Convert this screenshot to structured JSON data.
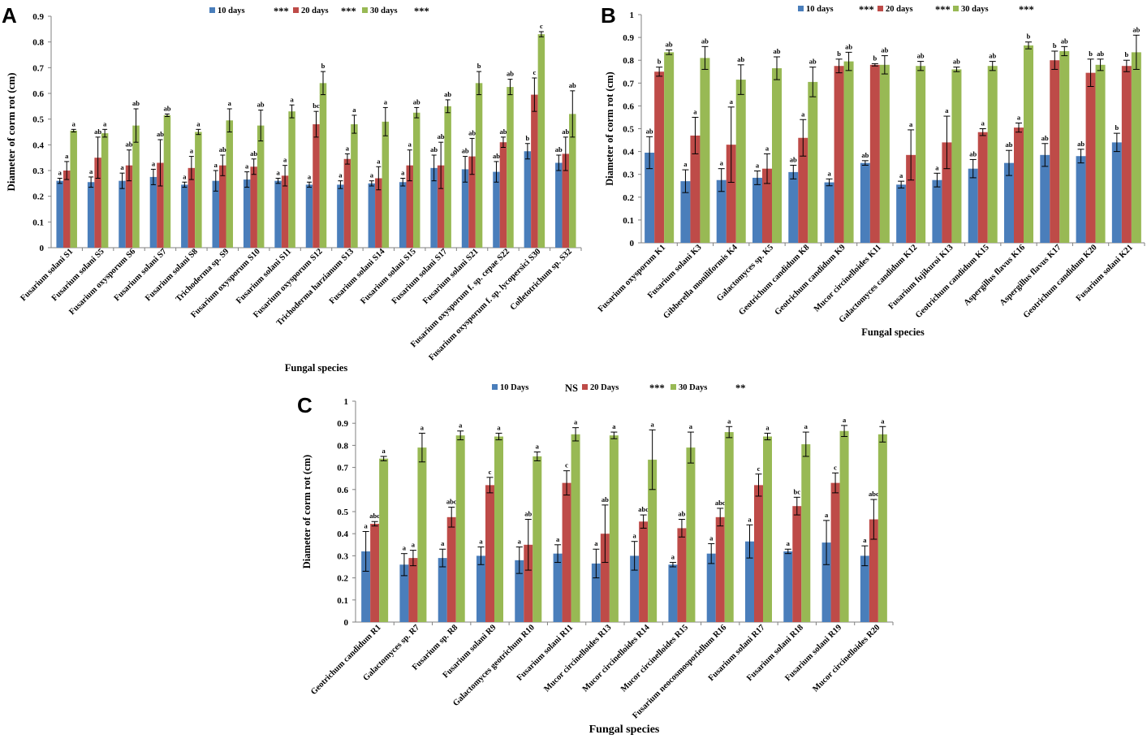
{
  "chart_data": [
    {
      "panel": "A",
      "type": "bar",
      "ylabel": "Diameter of corm rot (cm)",
      "xlabel": "Fungal species",
      "ylim": [
        0,
        0.9
      ],
      "yticks": [
        "0",
        "0.1",
        "0.2",
        "0.3",
        "0.4",
        "0.5",
        "0.6",
        "0.7",
        "0.8",
        "0.9"
      ],
      "legend_position": "top",
      "categories": [
        "Fusarium solani S1",
        "Fusarium solani S5",
        "Fusarium oxysporum S6",
        "Fusarium solani S7",
        "Fusarium solani S8",
        "Trichoderma sp. S9",
        "Fusarium oxysporum S10",
        "Fusarium solani S11",
        "Fusarium oxysporum S12",
        "Trichoderma harzianum S13",
        "Fusarium solani S14",
        "Fusarium solani S15",
        "Fusarium solani S17",
        "Fusarium solani S21",
        "Fusarium oxysporum f. sp. cepae S22",
        "Fusarium oxysporum f. sp. lycopersici S30",
        "Colletotrichum sp. S32"
      ],
      "series": [
        {
          "name": "10 days",
          "sig": "***",
          "color": "#4a7ebb",
          "values": [
            0.26,
            0.255,
            0.26,
            0.275,
            0.245,
            0.26,
            0.265,
            0.26,
            0.245,
            0.245,
            0.25,
            0.255,
            0.31,
            0.305,
            0.295,
            0.375,
            0.33
          ],
          "errors": [
            0.01,
            0.02,
            0.03,
            0.03,
            0.01,
            0.04,
            0.03,
            0.01,
            0.01,
            0.015,
            0.01,
            0.015,
            0.05,
            0.05,
            0.04,
            0.03,
            0.03
          ],
          "labels": [
            "a",
            "a",
            "a",
            "a",
            "a",
            "a",
            "a",
            "a",
            "a",
            "a",
            "a",
            "a",
            "ab",
            "ab",
            "ab",
            "b",
            "ab"
          ]
        },
        {
          "name": "20 days",
          "sig": "***",
          "color": "#be4b48",
          "values": [
            0.3,
            0.35,
            0.32,
            0.33,
            0.31,
            0.32,
            0.315,
            0.28,
            0.48,
            0.345,
            0.27,
            0.32,
            0.32,
            0.355,
            0.41,
            0.595,
            0.365
          ],
          "errors": [
            0.035,
            0.08,
            0.06,
            0.09,
            0.045,
            0.04,
            0.03,
            0.04,
            0.05,
            0.02,
            0.045,
            0.06,
            0.09,
            0.07,
            0.02,
            0.065,
            0.065
          ],
          "labels": [
            "a",
            "ab",
            "ab",
            "ab",
            "a",
            "ab",
            "ab",
            "a",
            "bc",
            "a",
            "a",
            "a",
            "ab",
            "ab",
            "ab",
            "c",
            "ab"
          ]
        },
        {
          "name": "30 days",
          "sig": "***",
          "color": "#98b954",
          "values": [
            0.455,
            0.445,
            0.475,
            0.515,
            0.45,
            0.495,
            0.475,
            0.53,
            0.64,
            0.48,
            0.49,
            0.525,
            0.55,
            0.64,
            0.625,
            0.83,
            0.52
          ],
          "errors": [
            0.005,
            0.015,
            0.065,
            0.005,
            0.01,
            0.045,
            0.06,
            0.025,
            0.045,
            0.035,
            0.055,
            0.02,
            0.025,
            0.045,
            0.03,
            0.01,
            0.09
          ],
          "labels": [
            "a",
            "a",
            "ab",
            "ab",
            "a",
            "a",
            "ab",
            "a",
            "b",
            "a",
            "a",
            "ab",
            "ab",
            "b",
            "ab",
            "c",
            "ab"
          ]
        }
      ]
    },
    {
      "panel": "B",
      "type": "bar",
      "ylabel": "Diameter of corm rot (cm)",
      "xlabel": "Fungal species",
      "ylim": [
        0,
        1
      ],
      "yticks": [
        "0",
        "0.1",
        "0.2",
        "0.3",
        "0.4",
        "0.5",
        "0.6",
        "0.7",
        "0.8",
        "0.9",
        "1"
      ],
      "legend_position": "top",
      "categories": [
        "Fusarium oxysporum K1",
        "Fusarium solani K3",
        "Gibberella moniliformis K4",
        "Galactomyces sp. K5",
        "Geotrichum candidum K8",
        "Geotrichum candidum K9",
        "Mucor circinelloides K11",
        "Galactomyces candidum K12",
        "Fusarium fujikuroi K13",
        "Geotrichum candidum K15",
        "Aspergillus flavus K16",
        "Aspergillus flavus K17",
        "Geotrichum candidum K20",
        "Fusarium solani K21"
      ],
      "series": [
        {
          "name": "10  days",
          "sig": "***",
          "color": "#4a7ebb",
          "values": [
            0.395,
            0.27,
            0.275,
            0.285,
            0.31,
            0.265,
            0.35,
            0.255,
            0.275,
            0.325,
            0.35,
            0.385,
            0.38,
            0.44
          ],
          "errors": [
            0.07,
            0.05,
            0.05,
            0.03,
            0.03,
            0.015,
            0.01,
            0.015,
            0.03,
            0.04,
            0.055,
            0.05,
            0.03,
            0.04
          ],
          "labels": [
            "ab",
            "a",
            "a",
            "a",
            "ab",
            "a",
            "ab",
            "a",
            "a",
            "ab",
            "ab",
            "ab",
            "ab",
            "b"
          ]
        },
        {
          "name": "20 days",
          "sig": "***",
          "color": "#be4b48",
          "values": [
            0.75,
            0.47,
            0.43,
            0.325,
            0.46,
            0.775,
            0.78,
            0.385,
            0.44,
            0.485,
            0.505,
            0.8,
            0.745,
            0.775
          ],
          "errors": [
            0.02,
            0.08,
            0.165,
            0.065,
            0.08,
            0.03,
            0.005,
            0.11,
            0.115,
            0.015,
            0.02,
            0.04,
            0.06,
            0.025
          ],
          "labels": [
            "b",
            "a",
            "a",
            "a",
            "a",
            "b",
            "b",
            "a",
            "a",
            "a",
            "a",
            "b",
            "b",
            "b"
          ]
        },
        {
          "name": "30 days",
          "sig": "***",
          "color": "#98b954",
          "values": [
            0.835,
            0.81,
            0.715,
            0.765,
            0.705,
            0.795,
            0.78,
            0.775,
            0.76,
            0.775,
            0.865,
            0.84,
            0.78,
            0.835
          ],
          "errors": [
            0.01,
            0.05,
            0.065,
            0.05,
            0.065,
            0.04,
            0.04,
            0.02,
            0.01,
            0.02,
            0.015,
            0.02,
            0.025,
            0.075
          ],
          "labels": [
            "ab",
            "ab",
            "ab",
            "ab",
            "ab",
            "ab",
            "ab",
            "ab",
            "ab",
            "ab",
            "b",
            "ab",
            "ab",
            "ab"
          ]
        }
      ]
    },
    {
      "panel": "C",
      "type": "bar",
      "ylabel": "Diameter of corm rot (cm)",
      "xlabel": "Fungal species",
      "ylim": [
        0,
        1
      ],
      "yticks": [
        "0",
        "0.1",
        "0.2",
        "0.3",
        "0.4",
        "0.5",
        "0.6",
        "0.7",
        "0.8",
        "0.9",
        "1"
      ],
      "legend_position": "top",
      "categories": [
        "Geotrichum candidum R1",
        "Galactomyces sp. R7",
        "Fusarium sp. R8",
        "Fusarium solani R9",
        "Galactomyces geotrichum R10",
        "Fusarium solani R11",
        "Mucor circinelloides R13",
        "Mucor circinelloides R14",
        "Mucor circinelloides R15",
        "Fusarium neocosmosporiellum R16",
        "Fusarium solani R17",
        "Fusarium solani R18",
        "Fusarium solani R19",
        "Mucor circinelloides R20"
      ],
      "series": [
        {
          "name": "10 Days",
          "sig": "NS",
          "color": "#4a7ebb",
          "values": [
            0.32,
            0.26,
            0.29,
            0.3,
            0.28,
            0.31,
            0.265,
            0.3,
            0.26,
            0.31,
            0.365,
            0.32,
            0.36,
            0.3
          ],
          "errors": [
            0.09,
            0.05,
            0.04,
            0.04,
            0.06,
            0.04,
            0.065,
            0.065,
            0.01,
            0.045,
            0.075,
            0.01,
            0.1,
            0.045
          ],
          "labels": [
            "a",
            "a",
            "a",
            "a",
            "a",
            "a",
            "a",
            "a",
            "a",
            "a",
            "a",
            "a",
            "a",
            "a"
          ]
        },
        {
          "name": "20 Days",
          "sig": "***",
          "color": "#be4b48",
          "values": [
            0.445,
            0.29,
            0.475,
            0.62,
            0.35,
            0.63,
            0.4,
            0.455,
            0.425,
            0.475,
            0.62,
            0.525,
            0.63,
            0.465
          ],
          "errors": [
            0.01,
            0.035,
            0.045,
            0.035,
            0.115,
            0.055,
            0.13,
            0.03,
            0.04,
            0.04,
            0.05,
            0.04,
            0.045,
            0.09
          ],
          "labels": [
            "abc",
            "a",
            "abc",
            "c",
            "ab",
            "c",
            "ab",
            "abc",
            "ab",
            "abc",
            "c",
            "bc",
            "c",
            "abc"
          ]
        },
        {
          "name": "30 Days",
          "sig": "**",
          "color": "#98b954",
          "values": [
            0.74,
            0.79,
            0.845,
            0.84,
            0.75,
            0.85,
            0.845,
            0.735,
            0.79,
            0.86,
            0.84,
            0.805,
            0.865,
            0.85
          ],
          "errors": [
            0.01,
            0.065,
            0.02,
            0.015,
            0.02,
            0.03,
            0.015,
            0.135,
            0.07,
            0.025,
            0.015,
            0.055,
            0.025,
            0.035
          ],
          "labels": [
            "a",
            "a",
            "a",
            "a",
            "a",
            "a",
            "a",
            "a",
            "a",
            "a",
            "a",
            "a",
            "a",
            "a"
          ]
        }
      ]
    }
  ]
}
